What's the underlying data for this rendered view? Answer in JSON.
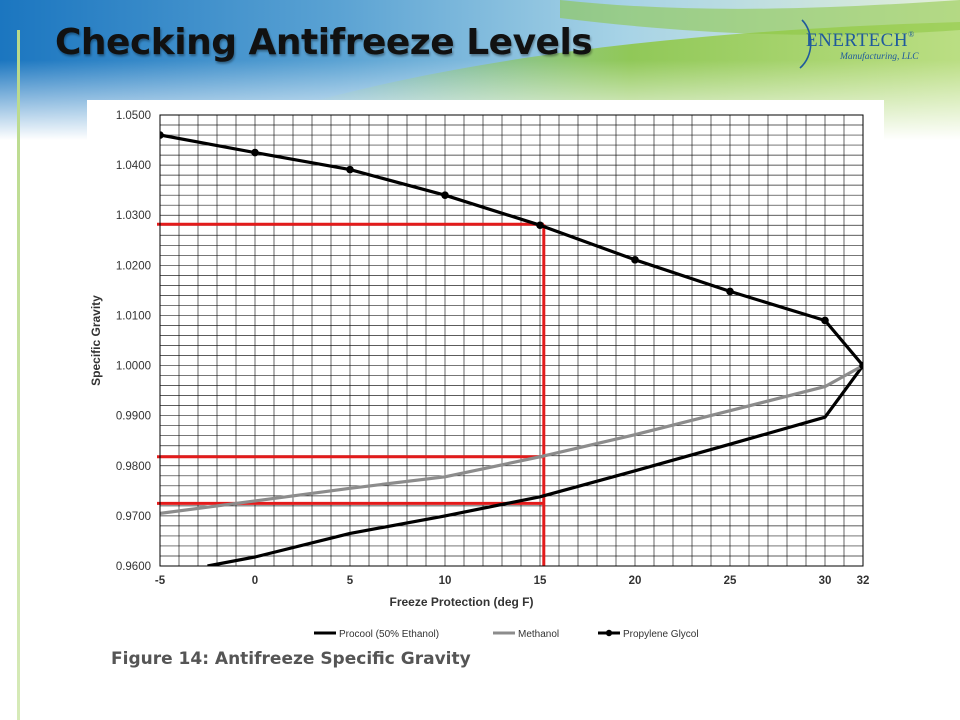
{
  "slide": {
    "title": "Checking Antifreeze Levels",
    "logo": {
      "name": "ENERTECH",
      "registered": "®",
      "subtitle": "Manufacturing, LLC"
    }
  },
  "figure": {
    "caption": "Figure 14:  Antifreeze Specific Gravity"
  },
  "colors": {
    "accent_green": "#8cc63f",
    "brand_blue": "#1f5a9c",
    "guide_red": "#e31b1b"
  },
  "chart_data": {
    "type": "line",
    "xlabel": "Freeze Protection (deg F)",
    "ylabel": "Specific Gravity",
    "x_ticks": [
      -5,
      0,
      5,
      10,
      15,
      20,
      25,
      30,
      32
    ],
    "x_tick_labels": [
      "-5",
      "0",
      "5",
      "10",
      "15",
      "20",
      "25",
      "30",
      "32"
    ],
    "y_ticks": [
      0.96,
      0.97,
      0.98,
      0.99,
      1.0,
      1.01,
      1.02,
      1.03,
      1.04,
      1.05
    ],
    "y_tick_labels": [
      "0.9600",
      "0.9700",
      "0.9800",
      "0.9900",
      "1.0000",
      "1.0100",
      "1.0200",
      "1.0300",
      "1.0400",
      "1.0500"
    ],
    "xlim": [
      -5,
      32
    ],
    "ylim": [
      0.96,
      1.05
    ],
    "grid": true,
    "legend_position": "bottom",
    "series": [
      {
        "name": "Procool (50% Ethanol)",
        "color": "#000000",
        "markers": false,
        "points": [
          [
            -2.5,
            0.96
          ],
          [
            0,
            0.9618
          ],
          [
            5,
            0.9665
          ],
          [
            10,
            0.97
          ],
          [
            15,
            0.9738
          ],
          [
            20,
            0.979
          ],
          [
            25,
            0.9843
          ],
          [
            30,
            0.9897
          ],
          [
            32,
            1.0
          ]
        ]
      },
      {
        "name": "Methanol",
        "color": "#8c8c8c",
        "markers": false,
        "points": [
          [
            -5,
            0.9705
          ],
          [
            0,
            0.973
          ],
          [
            5,
            0.9755
          ],
          [
            10,
            0.9778
          ],
          [
            15,
            0.9818
          ],
          [
            20,
            0.9862
          ],
          [
            25,
            0.991
          ],
          [
            30,
            0.9958
          ],
          [
            32,
            1.0
          ]
        ]
      },
      {
        "name": "Propylene Glycol",
        "color": "#000000",
        "markers": true,
        "points": [
          [
            -5,
            1.046
          ],
          [
            0,
            1.0425
          ],
          [
            5,
            1.0391
          ],
          [
            10,
            1.034
          ],
          [
            15,
            1.028
          ],
          [
            20,
            1.0211
          ],
          [
            25,
            1.0148
          ],
          [
            30,
            1.009
          ],
          [
            32,
            1.0
          ]
        ]
      }
    ],
    "annotations": {
      "vertical_guide_x": 15.2,
      "horizontal_guides": [
        1.0282,
        0.9818,
        0.9725
      ]
    }
  }
}
